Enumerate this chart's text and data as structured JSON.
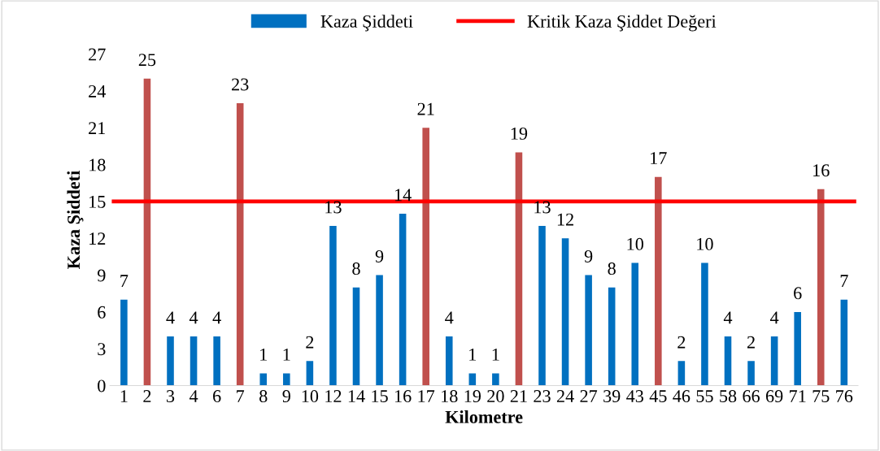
{
  "chart_data": {
    "type": "bar",
    "xlabel": "Kilometre",
    "ylabel": "Kaza Şiddeti",
    "categories": [
      "1",
      "2",
      "3",
      "4",
      "6",
      "7",
      "8",
      "9",
      "10",
      "12",
      "14",
      "15",
      "16",
      "17",
      "18",
      "19",
      "20",
      "21",
      "23",
      "24",
      "27",
      "39",
      "43",
      "45",
      "46",
      "55",
      "58",
      "66",
      "69",
      "71",
      "75",
      "76"
    ],
    "series": [
      {
        "name": "Kaza Şiddeti",
        "color": "#0070c0",
        "colors": [
          "#0070c0",
          "#c0504d",
          "#0070c0",
          "#0070c0",
          "#0070c0",
          "#c0504d",
          "#0070c0",
          "#0070c0",
          "#0070c0",
          "#0070c0",
          "#0070c0",
          "#0070c0",
          "#0070c0",
          "#c0504d",
          "#0070c0",
          "#0070c0",
          "#0070c0",
          "#c0504d",
          "#0070c0",
          "#0070c0",
          "#0070c0",
          "#0070c0",
          "#0070c0",
          "#c0504d",
          "#0070c0",
          "#0070c0",
          "#0070c0",
          "#0070c0",
          "#0070c0",
          "#0070c0",
          "#c0504d",
          "#0070c0"
        ],
        "values": [
          7,
          25,
          4,
          4,
          4,
          23,
          1,
          1,
          2,
          13,
          8,
          9,
          14,
          21,
          4,
          1,
          1,
          19,
          13,
          12,
          9,
          8,
          10,
          17,
          2,
          10,
          4,
          2,
          4,
          6,
          16,
          7
        ]
      }
    ],
    "ref_lines": [
      {
        "axis": "y",
        "value": 15,
        "label": "Kritik Kaza Şiddet Değeri",
        "color": "#ff0000",
        "line_style": "solid"
      }
    ],
    "ylim": [
      0,
      27
    ],
    "yticks": [
      0,
      3,
      6,
      9,
      12,
      15,
      18,
      21,
      24,
      27
    ],
    "data_labels": true,
    "grid": false,
    "legend": "top"
  }
}
